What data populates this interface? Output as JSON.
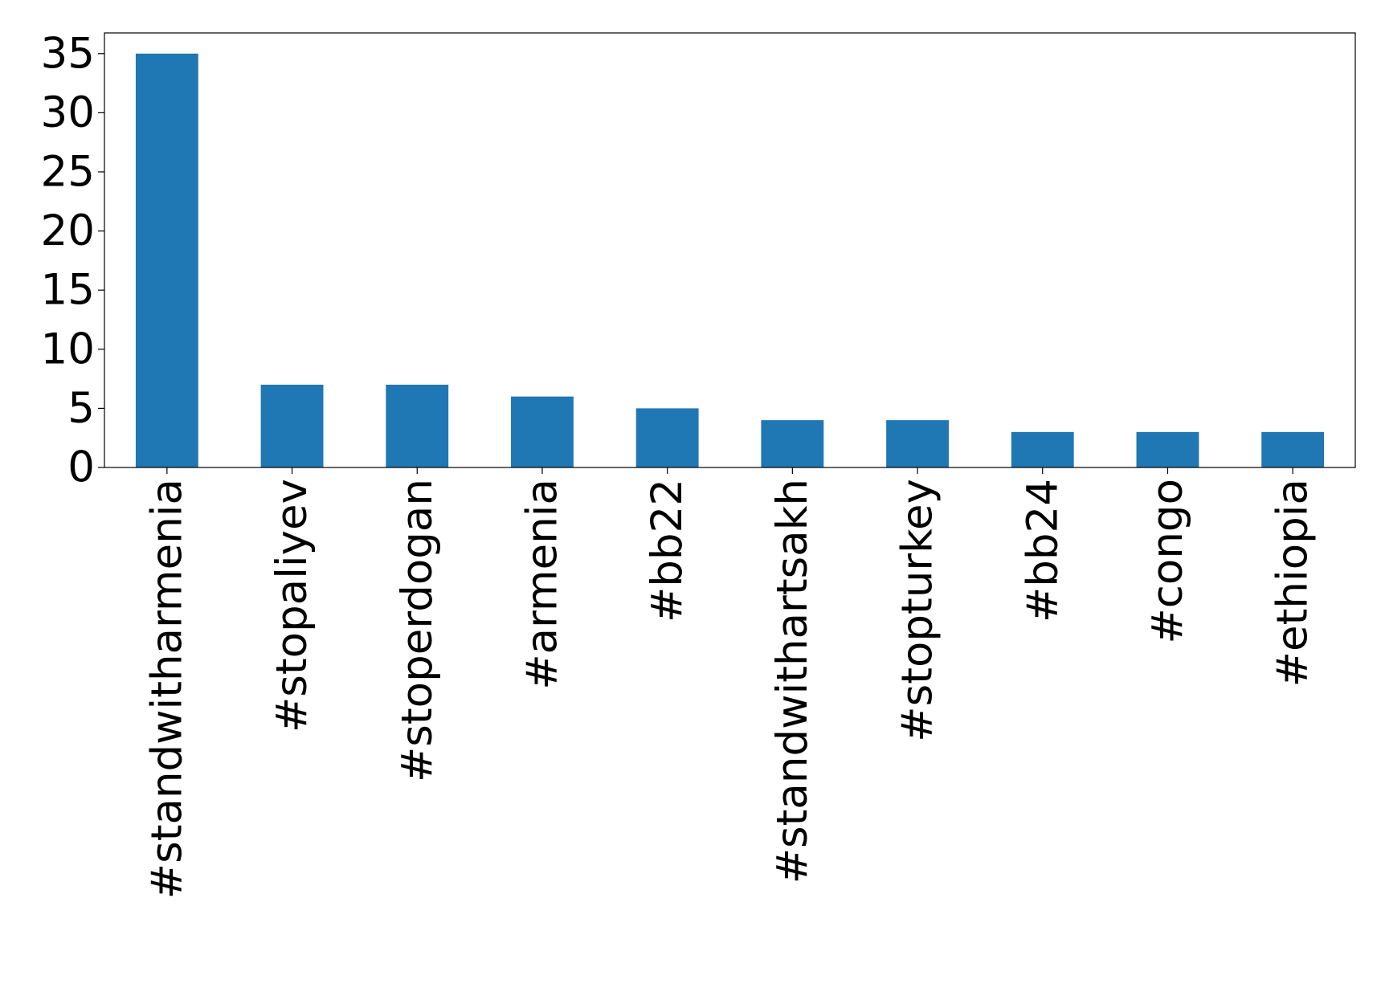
{
  "chart_data": {
    "type": "bar",
    "categories": [
      "#standwitharmenia",
      "#stopaliyev",
      "#stoperdogan",
      "#armenia",
      "#bb22",
      "#standwithartsakh",
      "#stopturkey",
      "#bb24",
      "#congo",
      "#ethiopia"
    ],
    "values": [
      35,
      7,
      7,
      6,
      5,
      4,
      4,
      3,
      3,
      3
    ],
    "color": "#1f77b4",
    "ylim": [
      0,
      36.75
    ],
    "yticks": [
      0,
      5,
      10,
      15,
      20,
      25,
      30,
      35
    ],
    "grid": false
  }
}
